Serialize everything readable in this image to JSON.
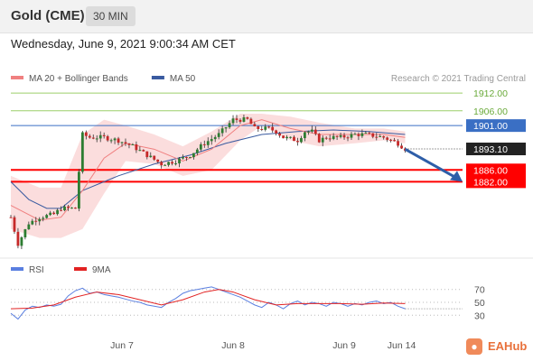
{
  "header": {
    "instrument": "Gold (CME)",
    "interval": "30 MIN"
  },
  "timestamp": "Wednesday, June 9, 2021 9:00:34 AM CET",
  "credit": "Research © 2021 Trading Central",
  "brand": {
    "name": "EAHub",
    "icon": "fox-icon"
  },
  "colors": {
    "ma20": "#f08080",
    "ma50": "#3a5ba0",
    "bollinger": "#fad7d7",
    "support": "#ff0000",
    "resistance_green": "#9ccf6a",
    "pivot_blue": "#3a6fc4",
    "rsi": "#5a7fe0",
    "rsi_ma": "#e22222",
    "arrow": "#2e5ea8"
  },
  "chart_data": [
    {
      "type": "candlestick",
      "legend": [
        {
          "label": "MA 20 + Bollinger Bands",
          "color": "#f08080"
        },
        {
          "label": "MA 50",
          "color": "#3a5ba0"
        }
      ],
      "x_ticks": [
        "Jun 7",
        "Jun 8",
        "Jun 9",
        "Jun 14"
      ],
      "y_range": [
        1858,
        1916
      ],
      "levels": [
        {
          "value": 1912.0,
          "label": "1912.00",
          "kind": "resistance",
          "color": "#9ccf6a"
        },
        {
          "value": 1906.0,
          "label": "1906.00",
          "kind": "resistance",
          "color": "#9ccf6a"
        },
        {
          "value": 1901.0,
          "label": "1901.00",
          "kind": "pivot",
          "color": "#3a6fc4"
        },
        {
          "value": 1893.1,
          "label": "1893.10",
          "kind": "last",
          "color": "#222222"
        },
        {
          "value": 1886.0,
          "label": "1886.00",
          "kind": "support",
          "color": "#ff0000"
        },
        {
          "value": 1882.0,
          "label": "1882.00",
          "kind": "support",
          "color": "#ff0000"
        }
      ],
      "price_path": [
        [
          0,
          1870
        ],
        [
          2,
          1861
        ],
        [
          5,
          1868
        ],
        [
          8,
          1870
        ],
        [
          12,
          1871
        ],
        [
          14,
          1873
        ],
        [
          18,
          1873
        ],
        [
          20,
          1898
        ],
        [
          22,
          1897
        ],
        [
          26,
          1897
        ],
        [
          30,
          1896
        ],
        [
          34,
          1894
        ],
        [
          38,
          1891
        ],
        [
          42,
          1888
        ],
        [
          46,
          1889
        ],
        [
          50,
          1891
        ],
        [
          54,
          1895
        ],
        [
          58,
          1898
        ],
        [
          62,
          1903
        ],
        [
          64,
          1903
        ],
        [
          66,
          1903
        ],
        [
          68,
          1900
        ],
        [
          72,
          1900
        ],
        [
          74,
          1899
        ],
        [
          76,
          1897
        ],
        [
          80,
          1896
        ],
        [
          82,
          1899
        ],
        [
          84,
          1899
        ],
        [
          86,
          1896
        ],
        [
          88,
          1897
        ],
        [
          92,
          1897
        ],
        [
          96,
          1898
        ],
        [
          99,
          1898
        ],
        [
          104,
          1897
        ],
        [
          108,
          1895
        ],
        [
          110,
          1893.1
        ]
      ],
      "ma50_path": [
        [
          0,
          1882
        ],
        [
          5,
          1876
        ],
        [
          10,
          1873
        ],
        [
          14,
          1873
        ],
        [
          20,
          1879
        ],
        [
          30,
          1884
        ],
        [
          40,
          1888
        ],
        [
          50,
          1891
        ],
        [
          60,
          1895
        ],
        [
          70,
          1898
        ],
        [
          80,
          1899
        ],
        [
          90,
          1899.5
        ],
        [
          100,
          1899
        ],
        [
          110,
          1898
        ]
      ],
      "ma20_path": [
        [
          0,
          1874
        ],
        [
          8,
          1869
        ],
        [
          14,
          1870
        ],
        [
          20,
          1879
        ],
        [
          26,
          1890
        ],
        [
          32,
          1895
        ],
        [
          40,
          1893
        ],
        [
          48,
          1889
        ],
        [
          56,
          1893
        ],
        [
          64,
          1901
        ],
        [
          70,
          1903
        ],
        [
          78,
          1900
        ],
        [
          86,
          1898
        ],
        [
          96,
          1898
        ],
        [
          104,
          1898
        ],
        [
          110,
          1897
        ]
      ],
      "bollinger_upper": [
        [
          0,
          1884
        ],
        [
          8,
          1880
        ],
        [
          14,
          1880
        ],
        [
          20,
          1898
        ],
        [
          26,
          1903
        ],
        [
          32,
          1901
        ],
        [
          40,
          1898
        ],
        [
          48,
          1894
        ],
        [
          56,
          1899
        ],
        [
          64,
          1905
        ],
        [
          70,
          1905
        ],
        [
          78,
          1904
        ],
        [
          86,
          1902
        ],
        [
          96,
          1900
        ],
        [
          104,
          1900
        ],
        [
          110,
          1899
        ]
      ],
      "bollinger_lower": [
        [
          0,
          1866
        ],
        [
          8,
          1863
        ],
        [
          14,
          1863
        ],
        [
          20,
          1866
        ],
        [
          26,
          1878
        ],
        [
          32,
          1889
        ],
        [
          40,
          1888
        ],
        [
          48,
          1884
        ],
        [
          56,
          1886
        ],
        [
          64,
          1896
        ],
        [
          70,
          1901
        ],
        [
          78,
          1896
        ],
        [
          86,
          1894
        ],
        [
          96,
          1895
        ],
        [
          104,
          1896
        ],
        [
          110,
          1895
        ]
      ],
      "forecast_arrow": [
        [
          110,
          1893
        ],
        [
          126,
          1882
        ]
      ]
    },
    {
      "type": "line",
      "legend": [
        {
          "label": "RSI",
          "color": "#5a7fe0"
        },
        {
          "label": "9MA",
          "color": "#e22222"
        }
      ],
      "y_ticks": [
        70,
        50,
        30
      ],
      "y_range": [
        15,
        85
      ],
      "series": [
        {
          "name": "RSI",
          "values": [
            [
              0,
              33
            ],
            [
              2,
              24
            ],
            [
              4,
              38
            ],
            [
              6,
              44
            ],
            [
              8,
              42
            ],
            [
              10,
              46
            ],
            [
              12,
              44
            ],
            [
              14,
              47
            ],
            [
              16,
              60
            ],
            [
              18,
              68
            ],
            [
              20,
              72
            ],
            [
              22,
              64
            ],
            [
              24,
              66
            ],
            [
              26,
              62
            ],
            [
              28,
              60
            ],
            [
              30,
              58
            ],
            [
              32,
              55
            ],
            [
              34,
              52
            ],
            [
              36,
              50
            ],
            [
              38,
              46
            ],
            [
              40,
              44
            ],
            [
              42,
              42
            ],
            [
              44,
              50
            ],
            [
              46,
              56
            ],
            [
              48,
              64
            ],
            [
              50,
              68
            ],
            [
              52,
              70
            ],
            [
              54,
              72
            ],
            [
              56,
              74
            ],
            [
              58,
              70
            ],
            [
              60,
              66
            ],
            [
              62,
              62
            ],
            [
              64,
              58
            ],
            [
              66,
              52
            ],
            [
              68,
              46
            ],
            [
              70,
              42
            ],
            [
              72,
              50
            ],
            [
              74,
              46
            ],
            [
              76,
              40
            ],
            [
              78,
              48
            ],
            [
              80,
              52
            ],
            [
              82,
              46
            ],
            [
              84,
              50
            ],
            [
              86,
              48
            ],
            [
              88,
              44
            ],
            [
              90,
              50
            ],
            [
              92,
              48
            ],
            [
              94,
              44
            ],
            [
              96,
              48
            ],
            [
              98,
              46
            ],
            [
              100,
              50
            ],
            [
              102,
              52
            ],
            [
              104,
              48
            ],
            [
              106,
              50
            ],
            [
              108,
              44
            ],
            [
              110,
              40
            ]
          ]
        },
        {
          "name": "9MA",
          "values": [
            [
              0,
              40
            ],
            [
              6,
              41
            ],
            [
              12,
              46
            ],
            [
              18,
              58
            ],
            [
              24,
              66
            ],
            [
              30,
              62
            ],
            [
              36,
              54
            ],
            [
              42,
              46
            ],
            [
              48,
              54
            ],
            [
              54,
              66
            ],
            [
              58,
              70
            ],
            [
              62,
              66
            ],
            [
              68,
              54
            ],
            [
              74,
              46
            ],
            [
              80,
              48
            ],
            [
              86,
              48
            ],
            [
              92,
              48
            ],
            [
              98,
              47
            ],
            [
              104,
              49
            ],
            [
              110,
              48
            ]
          ]
        }
      ]
    }
  ]
}
